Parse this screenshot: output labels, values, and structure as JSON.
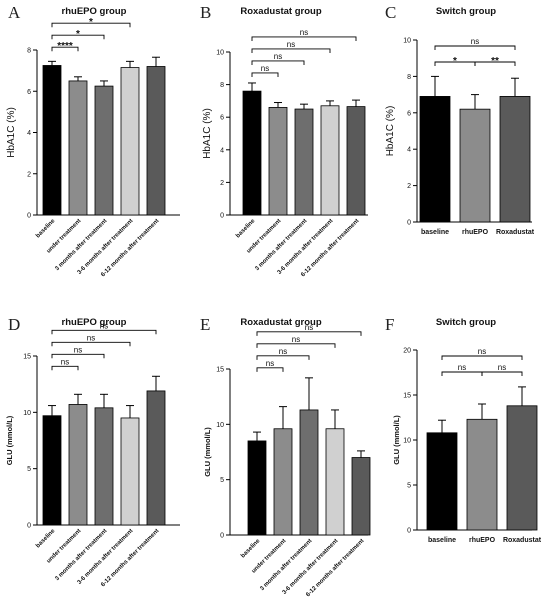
{
  "chart_data": [
    {
      "panel": "A",
      "type": "bar",
      "title": "rhuEPO group",
      "ylabel": "HbA1C (%)",
      "ylim": [
        0,
        8
      ],
      "yticks": [
        0,
        2,
        4,
        6,
        8
      ],
      "categories": [
        "baseline",
        "under treatment",
        "3 months after treatment",
        "3-6 months after treatment",
        "6-12 months after treatment"
      ],
      "values": [
        7.25,
        6.5,
        6.25,
        7.15,
        7.2
      ],
      "errors": [
        0.2,
        0.2,
        0.25,
        0.3,
        0.45
      ],
      "colors": [
        "#000000",
        "#8c8c8c",
        "#6e6e6e",
        "#d0d0d0",
        "#5a5a5a"
      ],
      "comparisons": [
        {
          "from": 0,
          "to": 1,
          "label": "****"
        },
        {
          "from": 0,
          "to": 2,
          "label": "*"
        },
        {
          "from": 0,
          "to": 3,
          "label": "*"
        }
      ]
    },
    {
      "panel": "B",
      "type": "bar",
      "title": "Roxadustat group",
      "ylabel": "HbA1C (%)",
      "ylim": [
        0,
        10
      ],
      "yticks": [
        0,
        2,
        4,
        6,
        8,
        10
      ],
      "categories": [
        "baseline",
        "under treatment",
        "3 months after treatment",
        "3-6 months after treatment",
        "6-12 months after treatment"
      ],
      "values": [
        7.6,
        6.6,
        6.5,
        6.7,
        6.65
      ],
      "errors": [
        0.5,
        0.3,
        0.3,
        0.3,
        0.4
      ],
      "colors": [
        "#000000",
        "#8c8c8c",
        "#6e6e6e",
        "#d0d0d0",
        "#5a5a5a"
      ],
      "comparisons": [
        {
          "from": 0,
          "to": 1,
          "label": "ns"
        },
        {
          "from": 0,
          "to": 2,
          "label": "ns"
        },
        {
          "from": 0,
          "to": 3,
          "label": "ns"
        },
        {
          "from": 0,
          "to": 4,
          "label": "ns"
        }
      ]
    },
    {
      "panel": "C",
      "type": "bar",
      "title": "Switch group",
      "ylabel": "HbA1C (%)",
      "ylim": [
        0,
        10
      ],
      "yticks": [
        0,
        2,
        4,
        6,
        8,
        10
      ],
      "categories": [
        "baseline",
        "rhuEPO",
        "Roxadustat"
      ],
      "values": [
        6.9,
        6.2,
        6.9
      ],
      "errors": [
        1.1,
        0.8,
        1.0
      ],
      "colors": [
        "#000000",
        "#8c8c8c",
        "#5a5a5a"
      ],
      "comparisons": [
        {
          "from": 0,
          "to": 1,
          "label": "*"
        },
        {
          "from": 1,
          "to": 2,
          "label": "**"
        },
        {
          "from": 0,
          "to": 2,
          "label": "ns"
        }
      ]
    },
    {
      "panel": "D",
      "type": "bar",
      "title": "rhuEPO group",
      "ylabel": "GLU (mmol/L)",
      "ylim": [
        0,
        15
      ],
      "yticks": [
        0,
        5,
        10,
        15
      ],
      "categories": [
        "baseline",
        "under treatment",
        "3 months after treatment",
        "3-6 months after treatment",
        "6-12 months after treatment"
      ],
      "values": [
        9.7,
        10.7,
        10.4,
        9.5,
        11.9
      ],
      "errors": [
        0.9,
        0.9,
        1.2,
        1.1,
        1.3
      ],
      "colors": [
        "#000000",
        "#8c8c8c",
        "#6e6e6e",
        "#d0d0d0",
        "#5a5a5a"
      ],
      "comparisons": [
        {
          "from": 0,
          "to": 1,
          "label": "ns"
        },
        {
          "from": 0,
          "to": 2,
          "label": "ns"
        },
        {
          "from": 0,
          "to": 3,
          "label": "ns"
        },
        {
          "from": 0,
          "to": 4,
          "label": "ns"
        }
      ]
    },
    {
      "panel": "E",
      "type": "bar",
      "title": "Roxadustat group",
      "ylabel": "GLU (mmol/L)",
      "ylim": [
        0,
        15
      ],
      "yticks": [
        0,
        5,
        10,
        15
      ],
      "categories": [
        "baseline",
        "under treatment",
        "3 months after treatment",
        "3-6 months after treatment",
        "6-12 months after treatment"
      ],
      "values": [
        8.5,
        9.6,
        11.3,
        9.6,
        7.0
      ],
      "errors": [
        0.8,
        2.0,
        2.9,
        1.7,
        0.6
      ],
      "colors": [
        "#000000",
        "#8c8c8c",
        "#6e6e6e",
        "#d0d0d0",
        "#5a5a5a"
      ],
      "comparisons": [
        {
          "from": 0,
          "to": 1,
          "label": "ns"
        },
        {
          "from": 0,
          "to": 2,
          "label": "ns"
        },
        {
          "from": 0,
          "to": 3,
          "label": "ns"
        },
        {
          "from": 0,
          "to": 4,
          "label": "ns"
        }
      ]
    },
    {
      "panel": "F",
      "type": "bar",
      "title": "Switch group",
      "ylabel": "GLU (mmol/L)",
      "ylim": [
        0,
        20
      ],
      "yticks": [
        0,
        5,
        10,
        15,
        20
      ],
      "categories": [
        "baseline",
        "rhuEPO",
        "Roxadustat"
      ],
      "values": [
        10.8,
        12.3,
        13.8
      ],
      "errors": [
        1.4,
        1.7,
        2.1
      ],
      "colors": [
        "#000000",
        "#8c8c8c",
        "#5a5a5a"
      ],
      "comparisons": [
        {
          "from": 0,
          "to": 1,
          "label": "ns"
        },
        {
          "from": 1,
          "to": 2,
          "label": "ns"
        },
        {
          "from": 0,
          "to": 2,
          "label": "ns"
        }
      ]
    }
  ]
}
